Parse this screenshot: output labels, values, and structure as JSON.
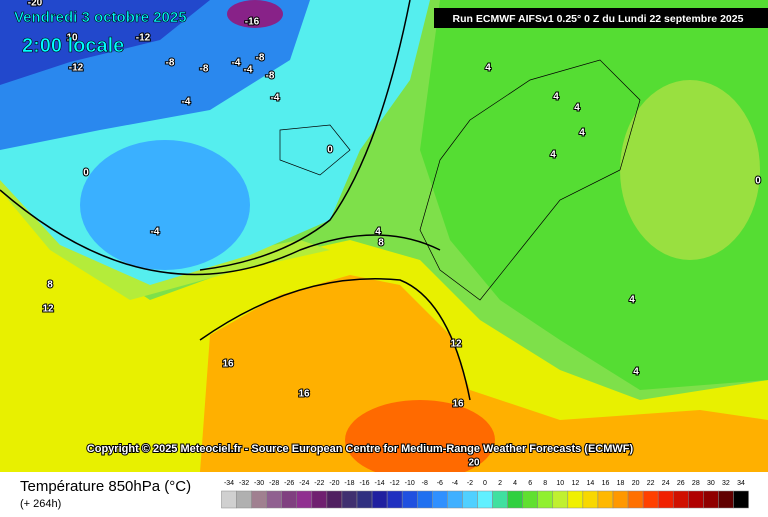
{
  "header": {
    "date": "Vendredi 3 octobre 2025",
    "time": "2:00 locale",
    "run": "Run ECMWF AIFSv1 0.25° 0 Z du Lundi 22 septembre 2025"
  },
  "map": {
    "contour_labels": [
      -20,
      -16,
      10,
      -12,
      -12,
      -8,
      -8,
      -4,
      -8,
      -8,
      -4,
      -4,
      -4,
      0,
      0,
      -4,
      4,
      4,
      4,
      4,
      4,
      0,
      4,
      8,
      8,
      12,
      12,
      16,
      16,
      16,
      20,
      4,
      4
    ],
    "copyright": "Copyright © 2025 Meteociel.fr - Source European Centre for Medium-Range Weather Forecasts (ECMWF)"
  },
  "footer": {
    "title": "Température 850hPa (°C)",
    "lead": "(+ 264h)",
    "legend": {
      "labels": [
        -34,
        -32,
        -30,
        -28,
        -26,
        -24,
        -22,
        -20,
        -18,
        -16,
        -14,
        -12,
        -10,
        -8,
        -6,
        -4,
        -2,
        0,
        2,
        4,
        6,
        8,
        10,
        12,
        14,
        16,
        18,
        20,
        22,
        24,
        26,
        28,
        30,
        32,
        34
      ],
      "colors": [
        "#d0d0d0",
        "#b0b0b0",
        "#a08090",
        "#906090",
        "#804080",
        "#903090",
        "#702070",
        "#502060",
        "#403070",
        "#303080",
        "#2020a0",
        "#2030c0",
        "#2050e0",
        "#2070f0",
        "#3090ff",
        "#40b0ff",
        "#50d0ff",
        "#60f0ff",
        "#40e0a0",
        "#30d040",
        "#60e030",
        "#90f030",
        "#c0f030",
        "#f0f000",
        "#f8d800",
        "#ffb800",
        "#ff9800",
        "#ff7000",
        "#ff4000",
        "#f02000",
        "#d01000",
        "#b00000",
        "#900000",
        "#600000",
        "#000000"
      ]
    }
  }
}
